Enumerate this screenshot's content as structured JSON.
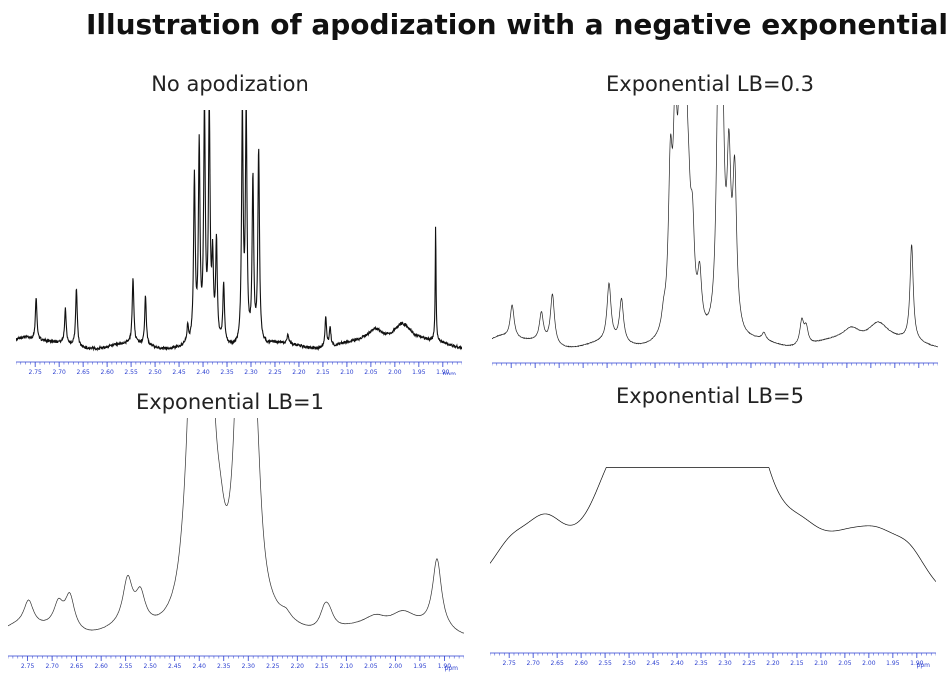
{
  "title": "Illustration of apodization with a negative exponential",
  "chart_data": [
    {
      "type": "line",
      "title": "No apodization",
      "xlabel": "ppm",
      "xlim": [
        2.79,
        1.86
      ],
      "x_reversed": true,
      "ticks": [
        "2.75",
        "2.70",
        "2.65",
        "2.60",
        "2.55",
        "2.50",
        "2.45",
        "2.40",
        "2.35",
        "2.30",
        "2.25",
        "2.20",
        "2.15",
        "2.10",
        "2.05",
        "2.00",
        "1.95",
        "1.90"
      ],
      "axis_color": "#2b3fd0",
      "line_color": "#111111",
      "noise": 0.012,
      "lb": 0,
      "peaks": [
        {
          "x": 2.775,
          "h": 0.05,
          "w": 0.03
        },
        {
          "x": 2.748,
          "h": 0.18,
          "w": 0.002
        },
        {
          "x": 2.687,
          "h": 0.15,
          "w": 0.002
        },
        {
          "x": 2.664,
          "h": 0.25,
          "w": 0.002
        },
        {
          "x": 2.546,
          "h": 0.28,
          "w": 0.002
        },
        {
          "x": 2.52,
          "h": 0.21,
          "w": 0.002
        },
        {
          "x": 2.432,
          "h": 0.07,
          "w": 0.002
        },
        {
          "x": 2.418,
          "h": 0.7,
          "w": 0.002
        },
        {
          "x": 2.408,
          "h": 0.82,
          "w": 0.002
        },
        {
          "x": 2.397,
          "h": 0.98,
          "w": 0.002
        },
        {
          "x": 2.387,
          "h": 0.98,
          "w": 0.002
        },
        {
          "x": 2.38,
          "h": 0.32,
          "w": 0.002
        },
        {
          "x": 2.372,
          "h": 0.42,
          "w": 0.002
        },
        {
          "x": 2.357,
          "h": 0.25,
          "w": 0.002
        },
        {
          "x": 2.318,
          "h": 0.98,
          "w": 0.002
        },
        {
          "x": 2.31,
          "h": 0.98,
          "w": 0.002
        },
        {
          "x": 2.296,
          "h": 0.7,
          "w": 0.002
        },
        {
          "x": 2.284,
          "h": 0.83,
          "w": 0.002
        },
        {
          "x": 2.223,
          "h": 0.04,
          "w": 0.002
        },
        {
          "x": 2.144,
          "h": 0.13,
          "w": 0.002
        },
        {
          "x": 2.135,
          "h": 0.08,
          "w": 0.002
        },
        {
          "x": 2.04,
          "h": 0.06,
          "w": 0.02
        },
        {
          "x": 1.985,
          "h": 0.1,
          "w": 0.025
        },
        {
          "x": 1.915,
          "h": 0.5,
          "w": 0.001
        }
      ]
    },
    {
      "type": "line",
      "title": "Exponential LB=0.3",
      "xlabel": "ppm",
      "xlim": [
        2.79,
        1.86
      ],
      "x_reversed": true,
      "ticks": [
        "2.75",
        "2.70",
        "2.65",
        "2.60",
        "2.55",
        "2.50",
        "2.45",
        "2.40",
        "2.35",
        "2.30",
        "2.25",
        "2.20",
        "2.15",
        "2.10",
        "2.05",
        "2.00",
        "1.95",
        "1.90"
      ],
      "axis_color": "#2b3fd0",
      "line_color": "#222222",
      "noise": 0.003,
      "lb": 0.3,
      "peaks": [
        {
          "x": 2.775,
          "h": 0.05,
          "w": 0.03
        },
        {
          "x": 2.748,
          "h": 0.14,
          "w": 0.002
        },
        {
          "x": 2.687,
          "h": 0.12,
          "w": 0.002
        },
        {
          "x": 2.664,
          "h": 0.21,
          "w": 0.002
        },
        {
          "x": 2.546,
          "h": 0.24,
          "w": 0.002
        },
        {
          "x": 2.52,
          "h": 0.18,
          "w": 0.002
        },
        {
          "x": 2.432,
          "h": 0.06,
          "w": 0.002
        },
        {
          "x": 2.418,
          "h": 0.62,
          "w": 0.002
        },
        {
          "x": 2.408,
          "h": 0.75,
          "w": 0.002
        },
        {
          "x": 2.397,
          "h": 0.98,
          "w": 0.002
        },
        {
          "x": 2.387,
          "h": 0.92,
          "w": 0.002
        },
        {
          "x": 2.38,
          "h": 0.3,
          "w": 0.002
        },
        {
          "x": 2.372,
          "h": 0.35,
          "w": 0.002
        },
        {
          "x": 2.357,
          "h": 0.22,
          "w": 0.002
        },
        {
          "x": 2.318,
          "h": 0.98,
          "w": 0.002
        },
        {
          "x": 2.31,
          "h": 0.92,
          "w": 0.002
        },
        {
          "x": 2.296,
          "h": 0.66,
          "w": 0.002
        },
        {
          "x": 2.284,
          "h": 0.64,
          "w": 0.002
        },
        {
          "x": 2.223,
          "h": 0.03,
          "w": 0.002
        },
        {
          "x": 2.144,
          "h": 0.1,
          "w": 0.002
        },
        {
          "x": 2.135,
          "h": 0.07,
          "w": 0.002
        },
        {
          "x": 2.04,
          "h": 0.06,
          "w": 0.02
        },
        {
          "x": 1.985,
          "h": 0.1,
          "w": 0.025
        },
        {
          "x": 1.915,
          "h": 0.4,
          "w": 0.001
        }
      ]
    },
    {
      "type": "line",
      "title": "Exponential LB=1",
      "xlabel": "ppm",
      "xlim": [
        2.79,
        1.86
      ],
      "x_reversed": true,
      "ticks": [
        "2.75",
        "2.70",
        "2.65",
        "2.60",
        "2.55",
        "2.50",
        "2.45",
        "2.40",
        "2.35",
        "2.30",
        "2.25",
        "2.20",
        "2.15",
        "2.10",
        "2.05",
        "2.00",
        "1.95",
        "1.90"
      ],
      "axis_color": "#2b3fd0",
      "line_color": "#333333",
      "noise": 0.0015,
      "lb": 1,
      "peaks": [
        {
          "x": 2.775,
          "h": 0.05,
          "w": 0.03
        },
        {
          "x": 2.748,
          "h": 0.12,
          "w": 0.002
        },
        {
          "x": 2.687,
          "h": 0.11,
          "w": 0.002
        },
        {
          "x": 2.664,
          "h": 0.16,
          "w": 0.002
        },
        {
          "x": 2.546,
          "h": 0.21,
          "w": 0.002
        },
        {
          "x": 2.52,
          "h": 0.14,
          "w": 0.002
        },
        {
          "x": 2.432,
          "h": 0.05,
          "w": 0.002
        },
        {
          "x": 2.418,
          "h": 0.55,
          "w": 0.002
        },
        {
          "x": 2.408,
          "h": 0.65,
          "w": 0.002
        },
        {
          "x": 2.397,
          "h": 0.98,
          "w": 0.002
        },
        {
          "x": 2.387,
          "h": 0.9,
          "w": 0.002
        },
        {
          "x": 2.38,
          "h": 0.24,
          "w": 0.002
        },
        {
          "x": 2.372,
          "h": 0.25,
          "w": 0.002
        },
        {
          "x": 2.357,
          "h": 0.18,
          "w": 0.002
        },
        {
          "x": 2.318,
          "h": 0.92,
          "w": 0.002
        },
        {
          "x": 2.31,
          "h": 0.85,
          "w": 0.002
        },
        {
          "x": 2.296,
          "h": 0.6,
          "w": 0.002
        },
        {
          "x": 2.284,
          "h": 0.55,
          "w": 0.002
        },
        {
          "x": 2.223,
          "h": 0.03,
          "w": 0.002
        },
        {
          "x": 2.144,
          "h": 0.09,
          "w": 0.002
        },
        {
          "x": 2.135,
          "h": 0.06,
          "w": 0.002
        },
        {
          "x": 2.04,
          "h": 0.06,
          "w": 0.02
        },
        {
          "x": 1.985,
          "h": 0.1,
          "w": 0.025
        },
        {
          "x": 1.915,
          "h": 0.32,
          "w": 0.001
        }
      ]
    },
    {
      "type": "line",
      "title": "Exponential LB=5",
      "xlabel": "ppm",
      "xlim": [
        2.79,
        1.86
      ],
      "x_reversed": true,
      "ticks": [
        "2.75",
        "2.70",
        "2.65",
        "2.60",
        "2.55",
        "2.50",
        "2.45",
        "2.40",
        "2.35",
        "2.30",
        "2.25",
        "2.20",
        "2.15",
        "2.10",
        "2.05",
        "2.00",
        "1.95",
        "1.90"
      ],
      "axis_color": "#2b3fd0",
      "line_color": "#111111",
      "noise": 0,
      "lb": 5,
      "peaks": [
        {
          "x": 2.775,
          "h": 0.08,
          "w": 0.03
        },
        {
          "x": 2.748,
          "h": 0.22,
          "w": 0.008
        },
        {
          "x": 2.687,
          "h": 0.16,
          "w": 0.006
        },
        {
          "x": 2.664,
          "h": 0.22,
          "w": 0.006
        },
        {
          "x": 2.546,
          "h": 0.24,
          "w": 0.006
        },
        {
          "x": 2.52,
          "h": 0.18,
          "w": 0.006
        },
        {
          "x": 2.432,
          "h": 0.42,
          "w": 0.005
        },
        {
          "x": 2.418,
          "h": 0.48,
          "w": 0.005
        },
        {
          "x": 2.405,
          "h": 0.6,
          "w": 0.005
        },
        {
          "x": 2.395,
          "h": 0.78,
          "w": 0.005
        },
        {
          "x": 2.385,
          "h": 0.7,
          "w": 0.005
        },
        {
          "x": 2.372,
          "h": 0.32,
          "w": 0.005
        },
        {
          "x": 2.357,
          "h": 0.22,
          "w": 0.005
        },
        {
          "x": 2.318,
          "h": 0.68,
          "w": 0.005
        },
        {
          "x": 2.308,
          "h": 0.68,
          "w": 0.005
        },
        {
          "x": 2.296,
          "h": 0.45,
          "w": 0.005
        },
        {
          "x": 2.284,
          "h": 0.4,
          "w": 0.005
        },
        {
          "x": 2.223,
          "h": 0.03,
          "w": 0.006
        },
        {
          "x": 2.144,
          "h": 0.12,
          "w": 0.01
        },
        {
          "x": 2.135,
          "h": 0.08,
          "w": 0.008
        },
        {
          "x": 2.04,
          "h": 0.18,
          "w": 0.02
        },
        {
          "x": 1.985,
          "h": 0.3,
          "w": 0.02
        },
        {
          "x": 1.915,
          "h": 0.22,
          "w": 0.006
        }
      ]
    }
  ]
}
